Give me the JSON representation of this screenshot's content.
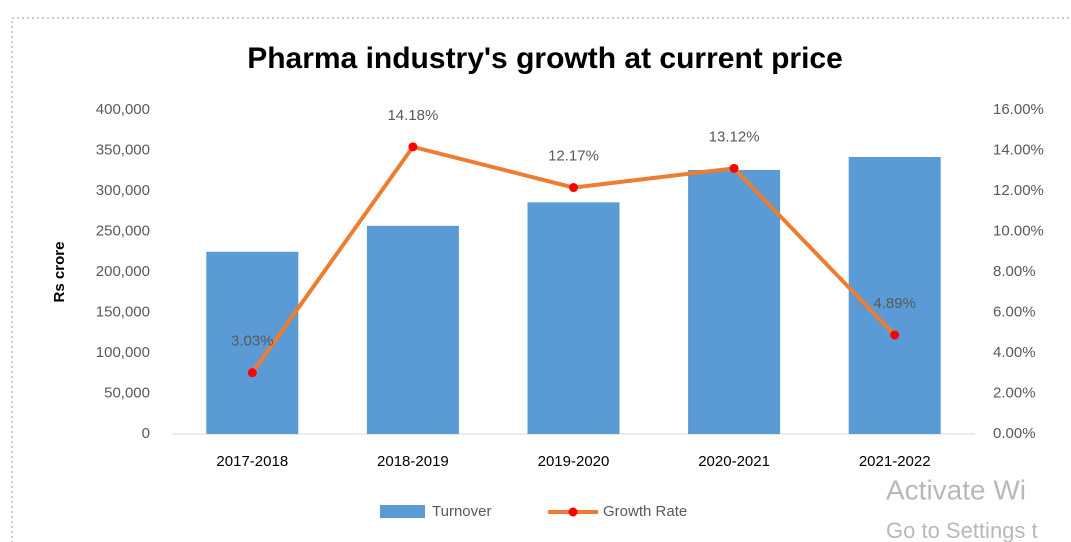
{
  "chart_data": {
    "type": "bar_line",
    "title": "Pharma industry's growth at current price",
    "y_label": "Rs crore",
    "categories": [
      "2017-2018",
      "2018-2019",
      "2019-2020",
      "2020-2021",
      "2021-2022"
    ],
    "series": [
      {
        "name": "Turnover",
        "type": "bar",
        "color": "#5b9bd5",
        "values": [
          225000,
          257000,
          286000,
          326000,
          342000
        ]
      },
      {
        "name": "Growth Rate",
        "type": "line",
        "axis": "y2",
        "color": "#ed7d31",
        "marker_color": "#ff0000",
        "values": [
          3.03,
          14.18,
          12.17,
          13.12,
          4.89
        ],
        "value_labels": [
          "3.03%",
          "14.18%",
          "12.17%",
          "13.12%",
          "4.89%"
        ]
      }
    ],
    "ylim": [
      0,
      400000
    ],
    "yticks": [
      0,
      {
        "value": 50000,
        "label": "50,000"
      },
      {
        "value": 100000,
        "label": "100,000"
      },
      {
        "value": 150000,
        "label": "150,000"
      },
      {
        "value": 200000,
        "label": "200,000"
      },
      {
        "value": 250000,
        "label": "250,000"
      },
      {
        "value": 300000,
        "label": "300,000"
      },
      {
        "value": 350000,
        "label": "350,000"
      },
      {
        "value": 400000,
        "label": "400,000"
      }
    ],
    "y2lim": [
      0,
      16
    ],
    "y2ticks": [
      {
        "value": 0,
        "label": "0.00%"
      },
      {
        "value": 2,
        "label": "2.00%"
      },
      {
        "value": 4,
        "label": "4.00%"
      },
      {
        "value": 6,
        "label": "6.00%"
      },
      {
        "value": 8,
        "label": "8.00%"
      },
      {
        "value": 10,
        "label": "10.00%"
      },
      {
        "value": 12,
        "label": "12.00%"
      },
      {
        "value": 14,
        "label": "14.00%"
      },
      {
        "value": 16,
        "label": "16.00%"
      }
    ],
    "legend": "bottom",
    "watermark": [
      "Activate Wi",
      "Go to Settings t"
    ]
  }
}
